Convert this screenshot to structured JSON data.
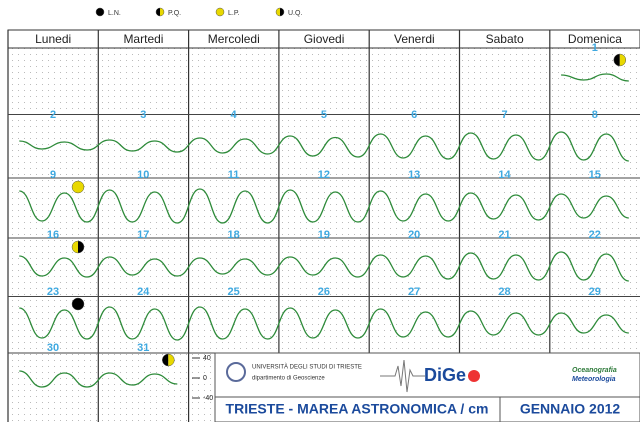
{
  "chart_data": {
    "type": "line",
    "title": "TRIESTE - MAREA ASTRONOMICA / cm",
    "subtitle": "GENNAIO 2012",
    "categories": [
      "Lunedi",
      "Martedi",
      "Mercoledi",
      "Giovedi",
      "Venerdi",
      "Sabato",
      "Domenica"
    ],
    "color": "#2e8b3a",
    "day_color": "#3fa9e0",
    "yticks": [
      40,
      0,
      -40
    ],
    "grid": true,
    "legend": [
      {
        "label": "L.N.",
        "colors": [
          "#000000",
          "#000000"
        ]
      },
      {
        "label": "P.Q.",
        "colors": [
          "#000000",
          "#e8d800"
        ]
      },
      {
        "label": "L.P.",
        "colors": [
          "#e8d800",
          "#e8d800"
        ]
      },
      {
        "label": "U.Q.",
        "colors": [
          "#e8d800",
          "#000000"
        ]
      }
    ],
    "weeks": [
      [
        null,
        null,
        null,
        null,
        null,
        null,
        {
          "day": 1,
          "moon": "P.Q.",
          "tide": [
            6,
            -4,
            8,
            -6
          ]
        }
      ],
      [
        {
          "day": 2,
          "tide": [
            8,
            -8,
            6,
            -10
          ]
        },
        {
          "day": 3,
          "tide": [
            10,
            -12,
            8,
            -14
          ]
        },
        {
          "day": 4,
          "tide": [
            14,
            -16,
            12,
            -18
          ]
        },
        {
          "day": 5,
          "tide": [
            18,
            -22,
            15,
            -24
          ]
        },
        {
          "day": 6,
          "tide": [
            22,
            -26,
            18,
            -28
          ]
        },
        {
          "day": 7,
          "tide": [
            24,
            -28,
            20,
            -30
          ]
        },
        {
          "day": 8,
          "tide": [
            26,
            -30,
            22,
            -32
          ]
        }
      ],
      [
        {
          "day": 9,
          "moon": "L.P.",
          "tide": [
            28,
            -32,
            24,
            -34
          ]
        },
        {
          "day": 10,
          "tide": [
            30,
            -34,
            26,
            -36
          ]
        },
        {
          "day": 11,
          "tide": [
            32,
            -36,
            28,
            -36
          ]
        },
        {
          "day": 12,
          "tide": [
            30,
            -34,
            26,
            -34
          ]
        },
        {
          "day": 13,
          "tide": [
            28,
            -32,
            22,
            -32
          ]
        },
        {
          "day": 14,
          "tide": [
            24,
            -28,
            20,
            -30
          ]
        },
        {
          "day": 15,
          "tide": [
            22,
            -26,
            18,
            -26
          ]
        }
      ],
      [
        {
          "day": 16,
          "moon": "U.Q.",
          "tide": [
            18,
            -22,
            14,
            -24
          ]
        },
        {
          "day": 17,
          "tide": [
            16,
            -20,
            12,
            -22
          ]
        },
        {
          "day": 18,
          "tide": [
            14,
            -18,
            12,
            -20
          ]
        },
        {
          "day": 19,
          "tide": [
            16,
            -20,
            14,
            -24
          ]
        },
        {
          "day": 20,
          "tide": [
            20,
            -24,
            18,
            -28
          ]
        },
        {
          "day": 21,
          "tide": [
            24,
            -28,
            20,
            -30
          ]
        },
        {
          "day": 22,
          "tide": [
            26,
            -30,
            22,
            -32
          ]
        }
      ],
      [
        {
          "day": 23,
          "moon": "L.N.",
          "tide": [
            28,
            -32,
            24,
            -34
          ]
        },
        {
          "day": 24,
          "tide": [
            30,
            -34,
            26,
            -36
          ]
        },
        {
          "day": 25,
          "tide": [
            30,
            -34,
            26,
            -34
          ]
        },
        {
          "day": 26,
          "tide": [
            28,
            -32,
            24,
            -32
          ]
        },
        {
          "day": 27,
          "tide": [
            26,
            -30,
            20,
            -30
          ]
        },
        {
          "day": 28,
          "tide": [
            22,
            -26,
            18,
            -26
          ]
        },
        {
          "day": 29,
          "tide": [
            18,
            -22,
            14,
            -22
          ]
        }
      ],
      [
        {
          "day": 30,
          "tide": [
            14,
            -18,
            10,
            -18
          ]
        },
        {
          "day": 31,
          "moon": "P.Q.",
          "tide": [
            10,
            -14,
            8,
            -12
          ]
        },
        null,
        null,
        null,
        null,
        null
      ]
    ],
    "logo": {
      "university": "UNIVERSITÀ DEGLI STUDI DI TRIESTE",
      "department": "dipartimento di Geoscienze",
      "brand": "DiGe",
      "group": [
        "Oceanografia",
        "Meteorologia"
      ]
    }
  }
}
